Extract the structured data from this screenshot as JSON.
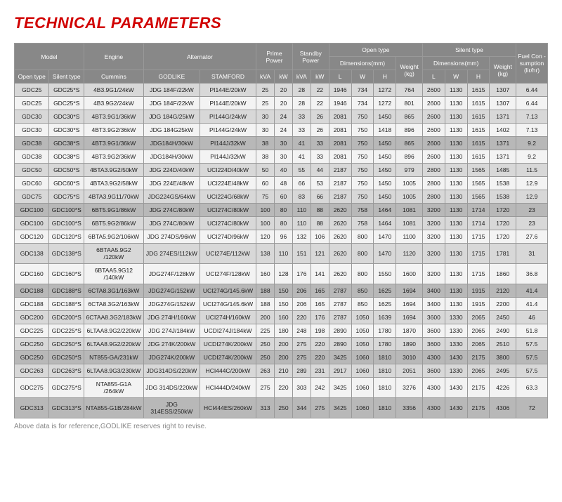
{
  "title": "TECHNICAL PARAMETERS",
  "footnote": "Above data is for reference,GODLIKE reserves right to revise.",
  "headers": {
    "group_open": "Open type",
    "group_silent": "Silent type",
    "model": "Model",
    "engine": "Engine",
    "alternator": "Alternator",
    "prime": "Prime Power",
    "standby": "Standby Power",
    "dims": "Dimensions(mm)",
    "weight": "Weight (kg)",
    "fuel": "Fuel Con -sumption (lir/hr)",
    "open_type": "Open type",
    "silent_type": "Silent type",
    "cummins": "Cummins",
    "godlike": "GODLIKE",
    "stamford": "STAMFORD",
    "kva": "kVA",
    "kw": "kW",
    "L": "L",
    "W": "W",
    "H": "H"
  },
  "rows": [
    {
      "hl": false,
      "c": [
        "GDC25",
        "GDC25*S",
        "4B3.9G1/24kW",
        "JDG 184F/22kW",
        "PI144E/20kW",
        "25",
        "20",
        "28",
        "22",
        "1946",
        "734",
        "1272",
        "764",
        "2600",
        "1130",
        "1615",
        "1307",
        "6.44"
      ]
    },
    {
      "hl": false,
      "c": [
        "GDC25",
        "GDC25*S",
        "4B3.9G2/24kW",
        "JDG 184F/22kW",
        "PI144E/20kW",
        "25",
        "20",
        "28",
        "22",
        "1946",
        "734",
        "1272",
        "801",
        "2600",
        "1130",
        "1615",
        "1307",
        "6.44"
      ]
    },
    {
      "hl": false,
      "c": [
        "GDC30",
        "GDC30*S",
        "4BT3.9G1/36kW",
        "JDG 184G/25kW",
        "PI144G/24kW",
        "30",
        "24",
        "33",
        "26",
        "2081",
        "750",
        "1450",
        "865",
        "2600",
        "1130",
        "1615",
        "1371",
        "7.13"
      ]
    },
    {
      "hl": false,
      "c": [
        "GDC30",
        "GDC30*S",
        "4BT3.9G2/36kW",
        "JDG 184G25kW",
        "PI144G/24kW",
        "30",
        "24",
        "33",
        "26",
        "2081",
        "750",
        "1418",
        "896",
        "2600",
        "1130",
        "1615",
        "1402",
        "7.13"
      ]
    },
    {
      "hl": true,
      "c": [
        "GDC38",
        "GDC38*S",
        "4BT3.9G1/36kW",
        "JDG184H/30kW",
        "PI144J/32kW",
        "38",
        "30",
        "41",
        "33",
        "2081",
        "750",
        "1450",
        "865",
        "2600",
        "1130",
        "1615",
        "1371",
        "9.2"
      ]
    },
    {
      "hl": false,
      "c": [
        "GDC38",
        "GDC38*S",
        "4BT3.9G2/36kW",
        "JDG184H/30kW",
        "PI144J/32kW",
        "38",
        "30",
        "41",
        "33",
        "2081",
        "750",
        "1450",
        "896",
        "2600",
        "1130",
        "1615",
        "1371",
        "9.2"
      ]
    },
    {
      "hl": false,
      "c": [
        "GDC50",
        "GDC50*S",
        "4BTA3.9G2/50kW",
        "JDG 224D/40kW",
        "UCI224D/40kW",
        "50",
        "40",
        "55",
        "44",
        "2187",
        "750",
        "1450",
        "979",
        "2800",
        "1130",
        "1565",
        "1485",
        "11.5"
      ]
    },
    {
      "hl": false,
      "c": [
        "GDC60",
        "GDC60*S",
        "4BTA3.9G2/58kW",
        "JDG 224E/48kW",
        "UCI224E/48kW",
        "60",
        "48",
        "66",
        "53",
        "2187",
        "750",
        "1450",
        "1005",
        "2800",
        "1130",
        "1565",
        "1538",
        "12.9"
      ]
    },
    {
      "hl": false,
      "c": [
        "GDC75",
        "GDC75*S",
        "4BTA3.9G11/70kW",
        "JDG224GS/64kW",
        "UCI224G/68kW",
        "75",
        "60",
        "83",
        "66",
        "2187",
        "750",
        "1450",
        "1005",
        "2800",
        "1130",
        "1565",
        "1538",
        "12.9"
      ]
    },
    {
      "hl": true,
      "c": [
        "GDC100",
        "GDC100*S",
        "6BT5.9G1/86kW",
        "JDG 274C/80kW",
        "UCI274C/80kW",
        "100",
        "80",
        "110",
        "88",
        "2620",
        "758",
        "1464",
        "1081",
        "3200",
        "1130",
        "1714",
        "1720",
        "23"
      ]
    },
    {
      "hl": false,
      "c": [
        "GDC100",
        "GDC100*S",
        "6BT5.9G2/86kW",
        "JDG 274C/80kW",
        "UCI274C/80kW",
        "100",
        "80",
        "110",
        "88",
        "2620",
        "758",
        "1464",
        "1081",
        "3200",
        "1130",
        "1714",
        "1720",
        "23"
      ]
    },
    {
      "hl": false,
      "c": [
        "GDC120",
        "GDC120*S",
        "6BTA5.9G2/106kW",
        "JDG 274DS/96kW",
        "UCI274D/96kW",
        "120",
        "96",
        "132",
        "106",
        "2620",
        "800",
        "1470",
        "1100",
        "3200",
        "1130",
        "1715",
        "1720",
        "27.6"
      ]
    },
    {
      "hl": false,
      "c": [
        "GDC138",
        "GDC138*S",
        "6BTAA5.9G2 /120kW",
        "JDG 274ES/112kW",
        "UCI274E/112kW",
        "138",
        "110",
        "151",
        "121",
        "2620",
        "800",
        "1470",
        "1120",
        "3200",
        "1130",
        "1715",
        "1781",
        "31"
      ]
    },
    {
      "hl": false,
      "c": [
        "GDC160",
        "GDC160*S",
        "6BTAA5.9G12 /140kW",
        "JDG274F/128kW",
        "UCI274F/128kW",
        "160",
        "128",
        "176",
        "141",
        "2620",
        "800",
        "1550",
        "1600",
        "3200",
        "1130",
        "1715",
        "1860",
        "36.8"
      ]
    },
    {
      "hl": true,
      "c": [
        "GDC188",
        "GDC188*S",
        "6CTA8.3G1/163kW",
        "JDG274G/152kW",
        "UCI274G/145.6kW",
        "188",
        "150",
        "206",
        "165",
        "2787",
        "850",
        "1625",
        "1694",
        "3400",
        "1130",
        "1915",
        "2120",
        "41.4"
      ]
    },
    {
      "hl": false,
      "c": [
        "GDC188",
        "GDC188*S",
        "6CTA8.3G2/163kW",
        "JDG274G/152kW",
        "UCI274G/145.6kW",
        "188",
        "150",
        "206",
        "165",
        "2787",
        "850",
        "1625",
        "1694",
        "3400",
        "1130",
        "1915",
        "2200",
        "41.4"
      ]
    },
    {
      "hl": false,
      "c": [
        "GDC200",
        "GDC200*S",
        "6CTAA8.3G2/183kW",
        "JDG 274H/160kW",
        "UCI274H/160kW",
        "200",
        "160",
        "220",
        "176",
        "2787",
        "1050",
        "1639",
        "1694",
        "3600",
        "1330",
        "2065",
        "2450",
        "46"
      ]
    },
    {
      "hl": false,
      "c": [
        "GDC225",
        "GDC225*S",
        "6LTAA8.9G2/220kW",
        "JDG 274J/184kW",
        "UCDI274J/184kW",
        "225",
        "180",
        "248",
        "198",
        "2890",
        "1050",
        "1780",
        "1870",
        "3600",
        "1330",
        "2065",
        "2490",
        "51.8"
      ]
    },
    {
      "hl": false,
      "c": [
        "GDC250",
        "GDC250*S",
        "6LTAA8.9G2/220kW",
        "JDG 274K/200kW",
        "UCDI274K/200kW",
        "250",
        "200",
        "275",
        "220",
        "2890",
        "1050",
        "1780",
        "1890",
        "3600",
        "1330",
        "2065",
        "2510",
        "57.5"
      ]
    },
    {
      "hl": true,
      "c": [
        "GDC250",
        "GDC250*S",
        "NT855-GA/231kW",
        "JDG274K/200kW",
        "UCDI274K/200kW",
        "250",
        "200",
        "275",
        "220",
        "3425",
        "1060",
        "1810",
        "3010",
        "4300",
        "1430",
        "2175",
        "3800",
        "57.5"
      ]
    },
    {
      "hl": false,
      "c": [
        "GDC263",
        "GDC263*S",
        "6LTAA8.9G3/230kW",
        "JDG314DS/220kW",
        "HCI444C/200kW",
        "263",
        "210",
        "289",
        "231",
        "2917",
        "1060",
        "1810",
        "2051",
        "3600",
        "1330",
        "2065",
        "2495",
        "57.5"
      ]
    },
    {
      "hl": false,
      "c": [
        "GDC275",
        "GDC275*S",
        "NTA855-G1A /264kW",
        "JDG 314DS/220kW",
        "HCI444D/240kW",
        "275",
        "220",
        "303",
        "242",
        "3425",
        "1060",
        "1810",
        "3276",
        "4300",
        "1430",
        "2175",
        "4226",
        "63.3"
      ]
    },
    {
      "hl": true,
      "c": [
        "GDC313",
        "GDC313*S",
        "NTA855-G1B/284kW",
        "JDG 314ESS/250kW",
        "HCI444ES/260kW",
        "313",
        "250",
        "344",
        "275",
        "3425",
        "1060",
        "1810",
        "3356",
        "4300",
        "1430",
        "2175",
        "4306",
        "72"
      ]
    }
  ]
}
